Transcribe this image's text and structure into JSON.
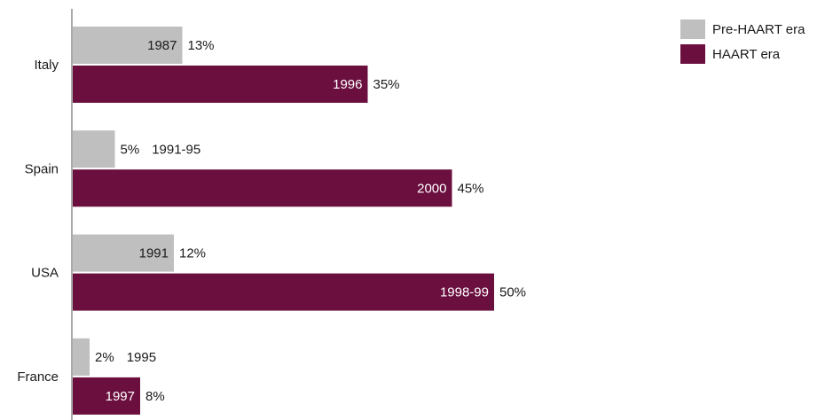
{
  "chart_data": {
    "type": "bar",
    "orientation": "horizontal",
    "categories": [
      "Italy",
      "Spain",
      "USA",
      "France"
    ],
    "unit": "%",
    "xlim": [
      0,
      50
    ],
    "grid": false,
    "legend_position": "top-right",
    "series": [
      {
        "name": "Pre-HAART era",
        "color": "#bfbfc0",
        "values": [
          13,
          5,
          12,
          2
        ],
        "period_labels": [
          "1987",
          "1991-95",
          "1991",
          "1995"
        ]
      },
      {
        "name": "HAART era",
        "color": "#6b0f3f",
        "values": [
          35,
          45,
          50,
          8
        ],
        "period_labels": [
          "1996",
          "2000",
          "1998-99",
          "1997"
        ]
      }
    ]
  }
}
